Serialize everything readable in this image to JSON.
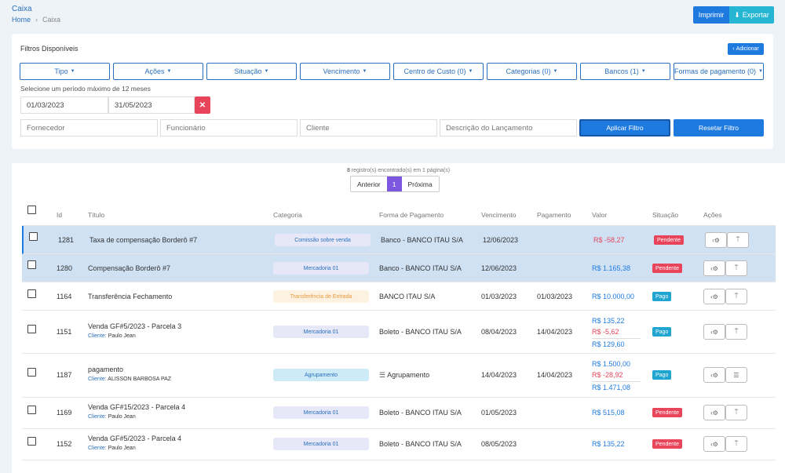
{
  "header": {
    "title": "Caixa",
    "breadcrumb": [
      "Home",
      "Caixa"
    ],
    "print_label": "Imprimir",
    "export_label": "Exportar"
  },
  "filters": {
    "title": "Filtros Disponíveis",
    "add_label": "Adicionar",
    "dropdowns": [
      "Tipo",
      "Ações",
      "Situação",
      "Vencimento",
      "Centro de Custo (0)",
      "Categorias (0)",
      "Bancos (1)",
      "Formas de pagamento (0)"
    ],
    "period_note": "Selecione um período máximo de 12 meses",
    "date_from": "01/03/2023",
    "date_to": "31/05/2023",
    "placeholders": [
      "Fornecedor",
      "Funcionário",
      "Cliente",
      "Descrição do Lançamento"
    ],
    "apply_label": "Aplicar Filtro",
    "reset_label": "Resetar Filtro"
  },
  "results": {
    "count": "8",
    "info_rest": " registro(s) encontrado(s) em 1 página(s)",
    "prev": "Anterior",
    "page": "1",
    "next": "Próxima"
  },
  "table": {
    "columns": [
      "Id",
      "Título",
      "Categoria",
      "Forma de Pagamento",
      "Vencimento",
      "Pagamento",
      "Valor",
      "Situação",
      "Ações"
    ],
    "client_label": "Cliente:",
    "rows": [
      {
        "id": "1281",
        "title": "Taxa de compensação Borderô #7",
        "client": "",
        "category": "Comissão sobre venda",
        "payment": "Banco - BANCO ITAU S/A",
        "due": "12/06/2023",
        "paid": "",
        "values": [
          "R$ -58,27"
        ],
        "status": "Pendente"
      },
      {
        "id": "1280",
        "title": "Compensação Borderô #7",
        "client": "",
        "category": "Mercadoria 01",
        "payment": "Banco - BANCO ITAU S/A",
        "due": "12/06/2023",
        "paid": "",
        "values": [
          "R$ 1.165,38"
        ],
        "status": "Pendente"
      },
      {
        "id": "1164",
        "title": "Transferência Fechamento",
        "client": "",
        "category": "Transferência de Entrada",
        "payment": "BANCO ITAU S/A",
        "due": "01/03/2023",
        "paid": "01/03/2023",
        "values": [
          "R$ 10.000,00"
        ],
        "status": "Pago"
      },
      {
        "id": "1151",
        "title": "Venda GF#5/2023 - Parcela 3",
        "client": "Paulo Jean",
        "category": "Mercadoria 01",
        "payment": "Boleto - BANCO ITAU S/A",
        "due": "08/04/2023",
        "paid": "14/04/2023",
        "values": [
          "R$ 135,22",
          "R$ -5,62",
          "R$ 129,60"
        ],
        "status": "Pago"
      },
      {
        "id": "1187",
        "title": "pagamento",
        "client": "ALISSON BARBOSA PAZ",
        "category": "Agrupamento",
        "payment": "Agrupamento",
        "due": "14/04/2023",
        "paid": "14/04/2023",
        "values": [
          "R$ 1.500,00",
          "R$ -28,92",
          "R$ 1.471,08"
        ],
        "status": "Pago"
      },
      {
        "id": "1169",
        "title": "Venda GF#15/2023 - Parcela 4",
        "client": "Paulo Jean",
        "category": "Mercadoria 01",
        "payment": "Boleto - BANCO ITAU S/A",
        "due": "01/05/2023",
        "paid": "",
        "values": [
          "R$ 515,08"
        ],
        "status": "Pendente"
      },
      {
        "id": "1152",
        "title": "Venda GF#5/2023 - Parcela 4",
        "client": "Paulo Jean",
        "category": "Mercadoria 01",
        "payment": "Boleto - BANCO ITAU S/A",
        "due": "08/05/2023",
        "paid": "",
        "values": [
          "R$ 135,22"
        ],
        "status": "Pendente"
      }
    ]
  },
  "colors": {
    "primary": "#1f7ae0",
    "export": "#26b5d3",
    "danger": "#e8455a",
    "paid": "#1fa5cf",
    "selected_row": "#cfe1f3",
    "page_active": "#7e57e0"
  }
}
